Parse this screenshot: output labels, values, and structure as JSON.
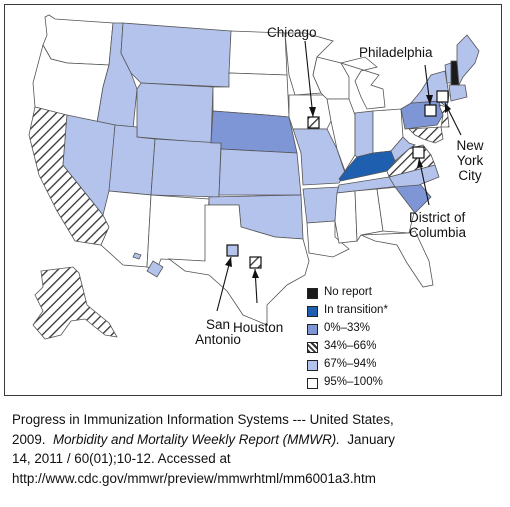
{
  "colors": {
    "no_report": "#1a1a1a",
    "in_transition": "#1f5fb0",
    "pct_0_33": "#7f96d6",
    "pct_34_66": "#ffffff",
    "pct_67_94": "#b4c3ec",
    "pct_95_100": "#ffffff",
    "border": "#555555"
  },
  "cities": {
    "chicago": "Chicago",
    "philadelphia": "Philadelphia",
    "new_york_line1": "New",
    "new_york_line2": "York",
    "new_york_line3": "City",
    "dc_line1": "District of",
    "dc_line2": "Columbia",
    "san_antonio_line1": "San",
    "san_antonio_line2": "Antonio",
    "houston": "Houston"
  },
  "legend": {
    "no_report": "No report",
    "in_transition": "In transition*",
    "pct_0_33": "0%–33%",
    "pct_34_66": "34%–66%",
    "pct_67_94": "67%–94%",
    "pct_95_100": "95%–100%"
  },
  "caption": {
    "line1": "Progress in Immunization Information Systems --- United States,",
    "line2_pre": "2009.  ",
    "line2_journal": "Morbidity and Mortality Weekly Report (MMWR).",
    "line2_post": "  January",
    "line3": "14, 2011 / 60(01);10-12.  Accessed at",
    "line4": "http://www.cdc.gov/mmwr/preview/mmwrhtml/mm6001a3.htm"
  }
}
